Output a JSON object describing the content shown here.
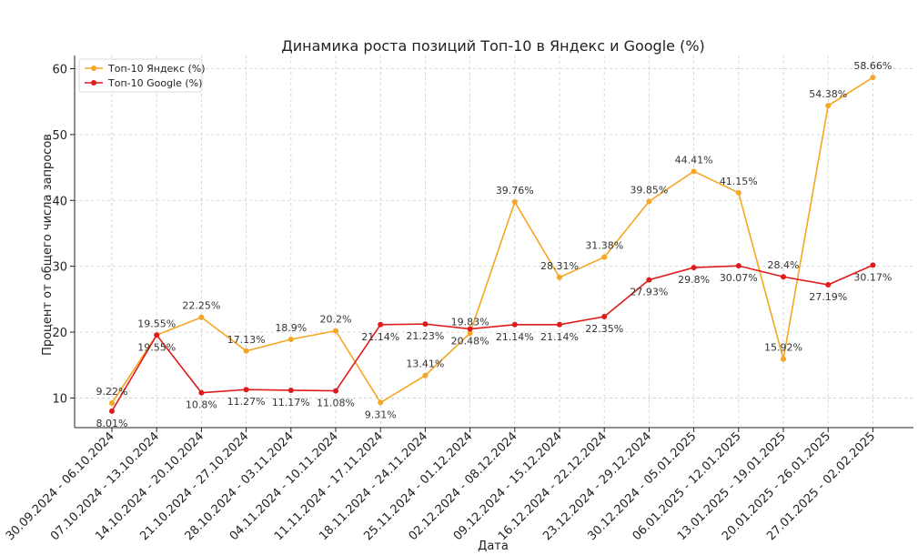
{
  "chart_data": {
    "type": "line",
    "title": "Динамика роста позиций Топ-10 в Яндекс и Google (%)",
    "xlabel": "Дата",
    "ylabel": "Процент от общего числа запросов",
    "ylim": [
      5.5,
      62
    ],
    "yticks": [
      10,
      20,
      30,
      40,
      50,
      60
    ],
    "grid": true,
    "legend_position": "top-left",
    "categories": [
      "30.09.2024 - 06.10.2024",
      "07.10.2024 - 13.10.2024",
      "14.10.2024 - 20.10.2024",
      "21.10.2024 - 27.10.2024",
      "28.10.2024 - 03.11.2024",
      "04.11.2024 - 10.11.2024",
      "11.11.2024 - 17.11.2024",
      "18.11.2024 - 24.11.2024",
      "25.11.2024 - 01.12.2024",
      "02.12.2024 - 08.12.2024",
      "09.12.2024 - 15.12.2024",
      "16.12.2024 - 22.12.2024",
      "23.12.2024 - 29.12.2024",
      "30.12.2024 - 05.01.2025",
      "06.01.2025 - 12.01.2025",
      "13.01.2025 - 19.01.2025",
      "20.01.2025 - 26.01.2025",
      "27.01.2025 - 02.02.2025"
    ],
    "series": [
      {
        "name": "Топ-10 Яндекс (%)",
        "color": "#f5a623",
        "values": [
          9.22,
          19.55,
          22.25,
          17.13,
          18.9,
          20.2,
          9.31,
          13.41,
          19.83,
          39.76,
          28.31,
          31.38,
          39.85,
          44.41,
          41.15,
          15.92,
          54.38,
          58.66
        ],
        "labels": [
          "9.22%",
          "19.55%",
          "22.25%",
          "17.13%",
          "18.9%",
          "20.2%",
          "9.31%",
          "13.41%",
          "19.83%",
          "39.76%",
          "28.31%",
          "31.38%",
          "39.85%",
          "44.41%",
          "41.15%",
          "15.92%",
          "54.38%",
          "58.66%"
        ],
        "label_pos": [
          "above",
          "above",
          "above",
          "above",
          "above",
          "above",
          "below",
          "above",
          "above",
          "above",
          "above",
          "above",
          "above",
          "above",
          "above",
          "above",
          "above",
          "above"
        ]
      },
      {
        "name": "Топ-10 Google (%)",
        "color": "#e01b1b",
        "values": [
          8.01,
          19.55,
          10.8,
          11.27,
          11.17,
          11.08,
          21.14,
          21.23,
          20.48,
          21.14,
          21.14,
          22.35,
          27.93,
          29.8,
          30.07,
          28.4,
          27.19,
          30.17
        ],
        "labels": [
          "8.01%",
          "19.55%",
          "10.8%",
          "11.27%",
          "11.17%",
          "11.08%",
          "21.14%",
          "21.23%",
          "20.48%",
          "21.14%",
          "21.14%",
          "22.35%",
          "27.93%",
          "29.8%",
          "30.07%",
          "28.4%",
          "27.19%",
          "30.17%"
        ],
        "label_pos": [
          "below",
          "below",
          "below",
          "below",
          "below",
          "below",
          "below",
          "below",
          "below",
          "below",
          "below",
          "below",
          "below",
          "below",
          "below",
          "above",
          "below",
          "below"
        ]
      }
    ]
  }
}
